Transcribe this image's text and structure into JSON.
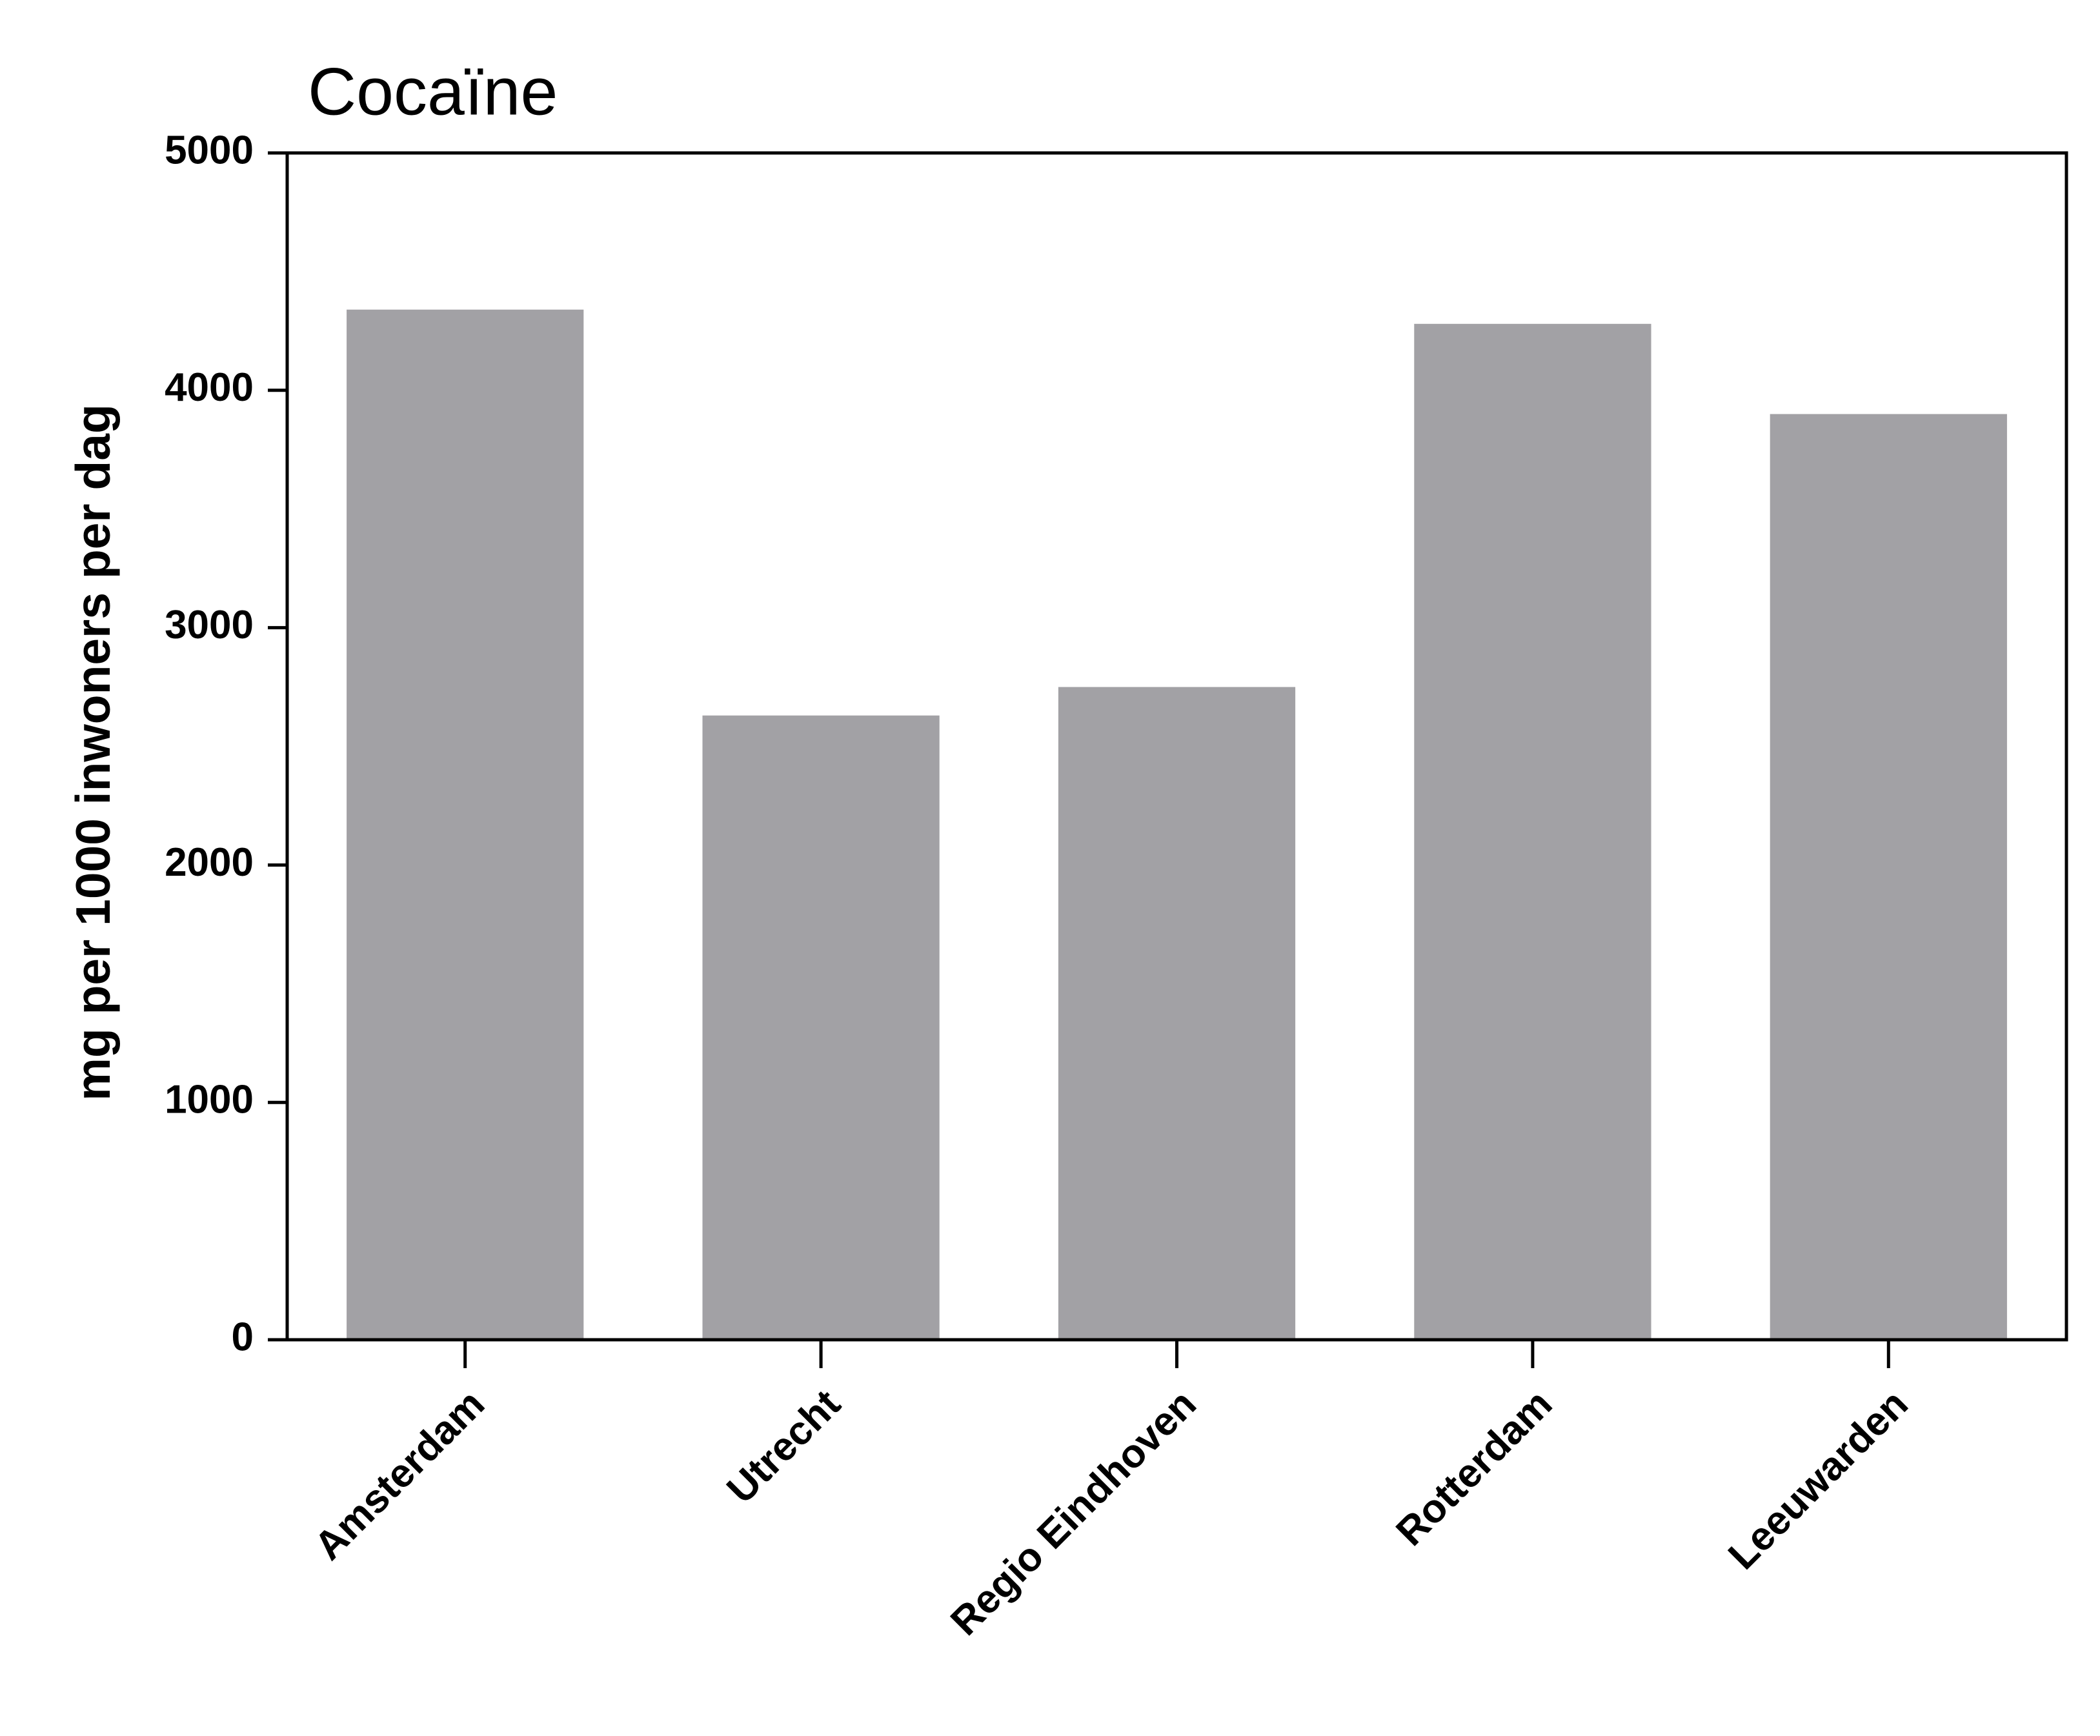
{
  "chart_data": {
    "type": "bar",
    "title": "Cocaïne",
    "y_label": "mg per 1000 inwoners per dag",
    "categories": [
      "Amsterdam",
      "Utrecht",
      "Regio Eindhoven",
      "Rotterdam",
      "Leeuwarden"
    ],
    "values": [
      4340,
      2630,
      2750,
      4280,
      3900
    ],
    "color": "#a2a1a5",
    "ylim": [
      0,
      5000
    ],
    "yticks": [
      0,
      1000,
      2000,
      3000,
      4000,
      5000
    ],
    "grid": false
  }
}
